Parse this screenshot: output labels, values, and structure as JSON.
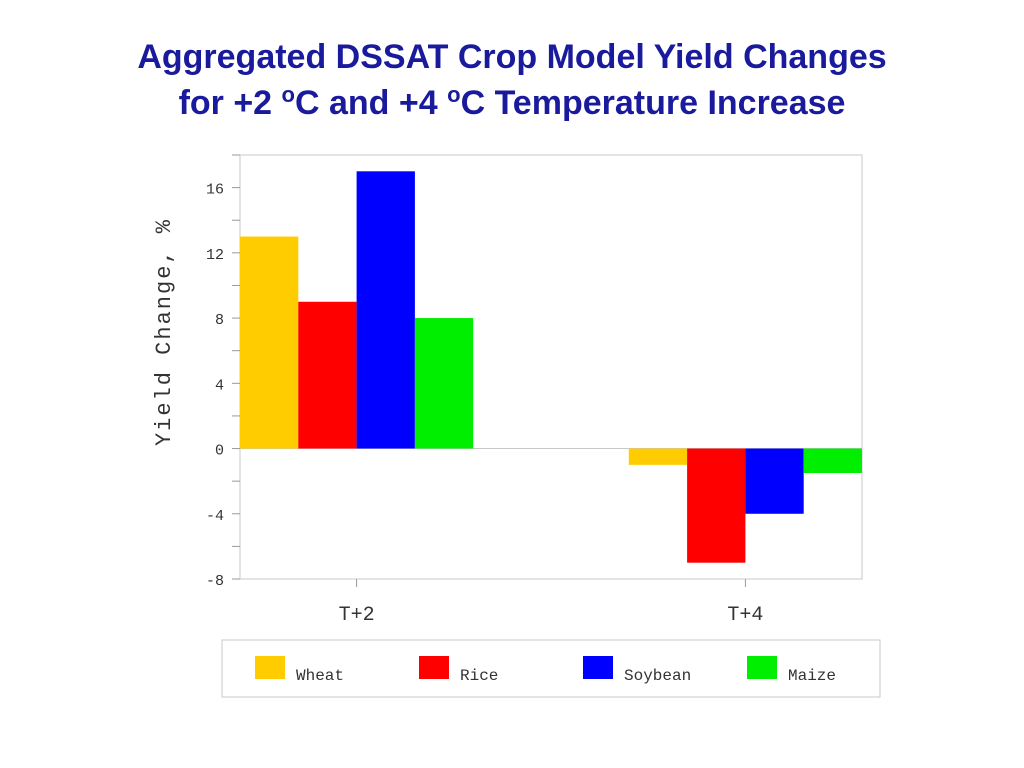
{
  "title": {
    "line1": "Aggregated DSSAT Crop Model Yield Changes",
    "line2_prefix": "for +2 ",
    "line2_sup1": "o",
    "line2_mid": "C and +4 ",
    "line2_sup2": "o",
    "line2_suffix": "C Temperature Increase"
  },
  "chart_data": {
    "type": "bar",
    "title": "Aggregated DSSAT Crop Model Yield Changes for +2 oC and +4 oC Temperature Increase",
    "xlabel": "",
    "ylabel": "Yield Change, %",
    "categories": [
      "T+2",
      "T+4"
    ],
    "series": [
      {
        "name": "Wheat",
        "values": [
          13,
          -1
        ],
        "color": "#ffcc00"
      },
      {
        "name": "Rice",
        "values": [
          9,
          -7
        ],
        "color": "#ff0000"
      },
      {
        "name": "Soybean",
        "values": [
          17,
          -4
        ],
        "color": "#0000ff"
      },
      {
        "name": "Maize",
        "values": [
          8,
          -1.5
        ],
        "color": "#00ee00"
      }
    ],
    "ylim": [
      -8,
      18
    ],
    "yticks": [
      -8,
      -4,
      0,
      4,
      8,
      12,
      16
    ],
    "grid": false,
    "legend_position": "bottom"
  }
}
